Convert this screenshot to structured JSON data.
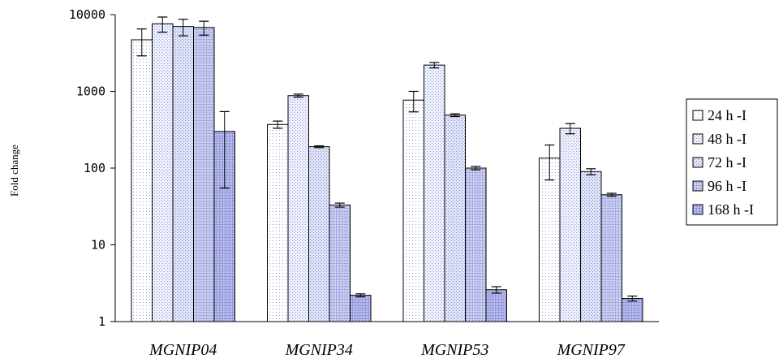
{
  "chart_data": {
    "type": "bar",
    "title": "",
    "xlabel": "",
    "ylabel": "Fold change",
    "yscale": "log",
    "ylim": [
      1,
      10000
    ],
    "yticks": [
      "10000",
      "1000",
      "100",
      "10",
      "1"
    ],
    "yticks_values": [
      10000,
      1000,
      100,
      10,
      1
    ],
    "categories": [
      "MGNIP04",
      "MGNIP34",
      "MGNIP53",
      "MGNIP97"
    ],
    "series": [
      {
        "name": "24 h -I",
        "values": [
          4700,
          370,
          770,
          135
        ],
        "errors": [
          1800,
          40,
          230,
          65
        ],
        "fill": "#ffffff",
        "dot": "#8fa0d8"
      },
      {
        "name": "48 h -I",
        "values": [
          7600,
          880,
          2200,
          330
        ],
        "errors": [
          1700,
          40,
          180,
          50
        ],
        "fill": "#eef0fb",
        "dot": "#8fa0d8"
      },
      {
        "name": "72 h -I",
        "values": [
          7000,
          190,
          490,
          90
        ],
        "errors": [
          1700,
          5,
          20,
          8
        ],
        "fill": "#dfe3f6",
        "dot": "#8890d4"
      },
      {
        "name": "96 h -I",
        "values": [
          6800,
          33,
          100,
          45
        ],
        "errors": [
          1400,
          2,
          5,
          2
        ],
        "fill": "#c9cdef",
        "dot": "#7f85cf"
      },
      {
        "name": "168 h -I",
        "values": [
          300,
          2.2,
          2.6,
          2.0
        ],
        "errors": [
          245,
          0.1,
          0.25,
          0.15
        ],
        "fill": "#b4b8ea",
        "dot": "#7076c9"
      }
    ],
    "legend_position": "right",
    "grid": false
  }
}
